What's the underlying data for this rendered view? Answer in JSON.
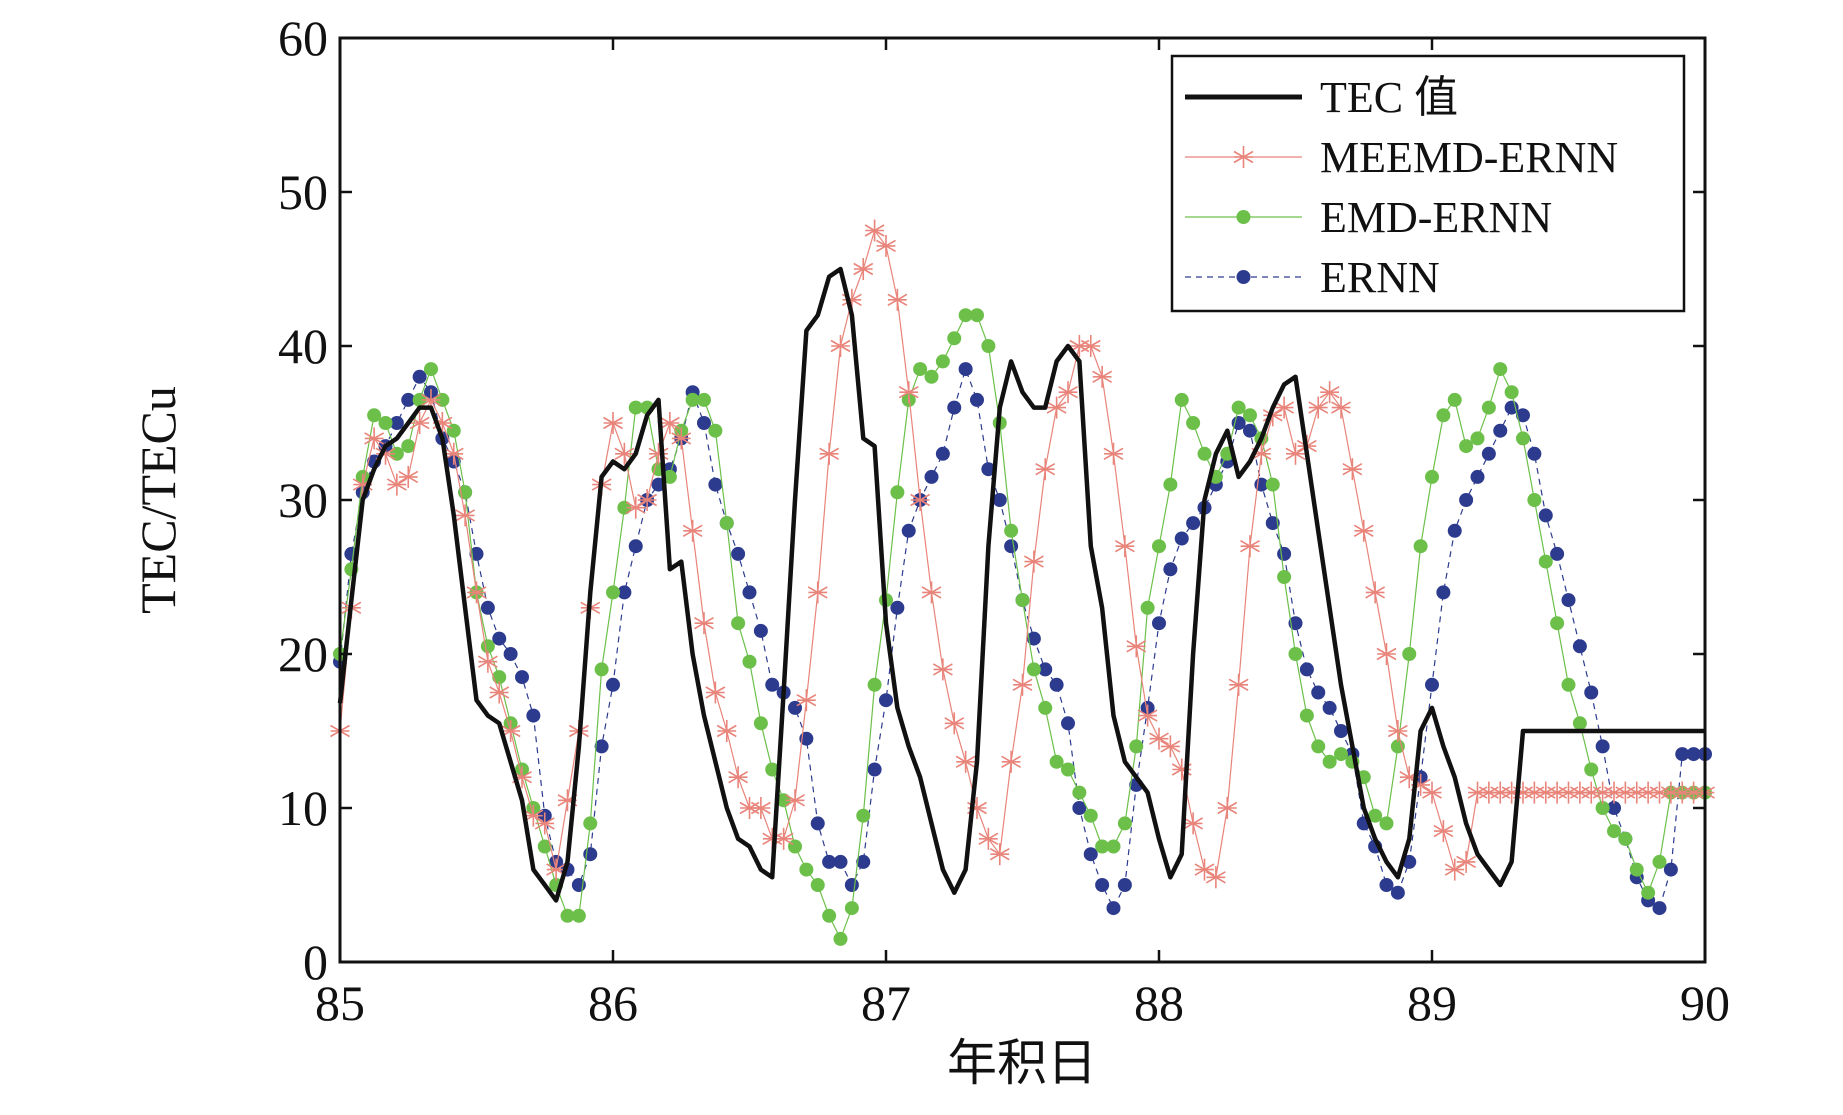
{
  "chart_data": {
    "type": "line",
    "title": "",
    "xlabel": "年积日",
    "ylabel": "TEC/TECu",
    "xlim": [
      85,
      90
    ],
    "ylim": [
      0,
      60
    ],
    "xticks": [
      "85",
      "86",
      "87",
      "88",
      "89",
      "90"
    ],
    "yticks": [
      "0",
      "10",
      "20",
      "30",
      "40",
      "50",
      "60"
    ],
    "grid": false,
    "legend_position": "top-right",
    "x": [
      85.0,
      85.0417,
      85.0833,
      85.125,
      85.1667,
      85.2083,
      85.25,
      85.2917,
      85.3333,
      85.375,
      85.4167,
      85.4583,
      85.5,
      85.5417,
      85.5833,
      85.625,
      85.6667,
      85.7083,
      85.75,
      85.7917,
      85.8333,
      85.875,
      85.9167,
      85.9583,
      86.0,
      86.0417,
      86.0833,
      86.125,
      86.1667,
      86.2083,
      86.25,
      86.2917,
      86.3333,
      86.375,
      86.4167,
      86.4583,
      86.5,
      86.5417,
      86.5833,
      86.625,
      86.6667,
      86.7083,
      86.75,
      86.7917,
      86.8333,
      86.875,
      86.9167,
      86.9583,
      87.0,
      87.0417,
      87.0833,
      87.125,
      87.1667,
      87.2083,
      87.25,
      87.2917,
      87.3333,
      87.375,
      87.4167,
      87.4583,
      87.5,
      87.5417,
      87.5833,
      87.625,
      87.6667,
      87.7083,
      87.75,
      87.7917,
      87.8333,
      87.875,
      87.9167,
      87.9583,
      88.0,
      88.0417,
      88.0833,
      88.125,
      88.1667,
      88.2083,
      88.25,
      88.2917,
      88.3333,
      88.375,
      88.4167,
      88.4583,
      88.5,
      88.5417,
      88.5833,
      88.625,
      88.6667,
      88.7083,
      88.75,
      88.7917,
      88.8333,
      88.875,
      88.9167,
      88.9583,
      89.0,
      89.0417,
      89.0833,
      89.125,
      89.1667,
      89.2083,
      89.25,
      89.2917,
      89.3333,
      89.375,
      89.4167,
      89.4583,
      89.5,
      89.5417,
      89.5833,
      89.625,
      89.6667,
      89.7083,
      89.75,
      89.7917,
      89.8333,
      89.875,
      89.9167,
      89.9583,
      90.0
    ],
    "series": [
      {
        "name": "TEC 值",
        "color": "#111111",
        "style": "solid-thick",
        "values": [
          16.8,
          23.5,
          30.0,
          32.0,
          33.5,
          34.0,
          35.0,
          36.0,
          36.0,
          34.0,
          29.0,
          23.0,
          17.0,
          16.0,
          15.5,
          13.0,
          10.5,
          6.0,
          5.0,
          4.0,
          6.5,
          14.0,
          24.0,
          31.5,
          32.5,
          32.0,
          33.0,
          35.5,
          36.5,
          25.5,
          26.0,
          20.0,
          16.0,
          13.0,
          10.0,
          8.0,
          7.5,
          6.0,
          5.5,
          17.5,
          30.0,
          41.0,
          42.0,
          44.5,
          45.0,
          42.0,
          34.0,
          33.5,
          22.0,
          16.5,
          14.0,
          12.0,
          9.0,
          6.0,
          4.5,
          6.0,
          13.0,
          27.0,
          36.0,
          39.0,
          37.0,
          36.0,
          36.0,
          39.0,
          40.0,
          39.0,
          27.0,
          23.0,
          16.0,
          13.0,
          12.0,
          11.0,
          8.0,
          5.5,
          7.0,
          20.0,
          30.0,
          33.0,
          34.5,
          31.5,
          32.5,
          34.0,
          36.0,
          37.5,
          38.0,
          33.0,
          28.0,
          23.0,
          18.0,
          14.0,
          10.0,
          8.0,
          6.5,
          5.5,
          8.0,
          15.0,
          16.5,
          14.0,
          12.0,
          9.0,
          7.0,
          6.0,
          5.0,
          6.5,
          15.0,
          15.0,
          15.0,
          15.0,
          15.0,
          15.0,
          15.0,
          15.0,
          15.0,
          15.0,
          15.0,
          15.0,
          15.0,
          15.0,
          15.0,
          15.0,
          15.0
        ]
      },
      {
        "name": "MEEMD-ERNN",
        "color": "#e8847a",
        "style": "thin-star",
        "values": [
          15.0,
          23.0,
          31.0,
          34.0,
          33.0,
          31.0,
          31.5,
          35.0,
          36.5,
          35.0,
          33.0,
          29.0,
          24.0,
          19.5,
          17.5,
          15.0,
          12.0,
          9.5,
          9.0,
          6.0,
          10.5,
          15.0,
          23.0,
          31.0,
          35.0,
          33.0,
          29.5,
          30.0,
          33.0,
          35.0,
          34.0,
          28.0,
          22.0,
          17.5,
          15.0,
          12.0,
          10.0,
          10.0,
          8.0,
          8.0,
          10.5,
          17.0,
          24.0,
          33.0,
          40.0,
          43.0,
          45.0,
          47.5,
          46.5,
          43.0,
          37.0,
          30.0,
          24.0,
          19.0,
          15.5,
          13.0,
          10.0,
          8.0,
          7.0,
          13.0,
          18.0,
          26.0,
          32.0,
          36.0,
          37.0,
          40.0,
          40.0,
          38.0,
          33.0,
          27.0,
          20.5,
          16.0,
          14.5,
          14.0,
          12.5,
          9.0,
          6.0,
          5.5,
          10.0,
          18.0,
          27.0,
          33.0,
          35.5,
          36.0,
          33.0,
          33.5,
          36.0,
          37.0,
          36.0,
          32.0,
          28.0,
          24.0,
          20.0,
          15.0,
          12.0,
          11.5,
          11.0,
          8.5,
          6.0,
          6.5,
          11.0,
          11.0,
          11.0,
          11.0,
          11.0,
          11.0,
          11.0,
          11.0,
          11.0,
          11.0,
          11.0,
          11.0,
          11.0,
          11.0,
          11.0,
          11.0,
          11.0,
          11.0,
          11.0,
          11.0,
          11.0
        ]
      },
      {
        "name": "EMD-ERNN",
        "color": "#6cc04a",
        "style": "thin-dot",
        "values": [
          20.0,
          25.5,
          31.5,
          35.5,
          35.0,
          33.0,
          33.5,
          36.5,
          38.5,
          36.5,
          34.5,
          30.5,
          24.0,
          20.5,
          18.5,
          15.5,
          12.5,
          10.0,
          7.5,
          5.0,
          3.0,
          3.0,
          9.0,
          19.0,
          24.0,
          29.5,
          36.0,
          36.0,
          32.0,
          31.5,
          34.5,
          36.5,
          36.5,
          34.5,
          28.5,
          22.0,
          19.5,
          15.5,
          12.5,
          10.5,
          7.5,
          6.0,
          5.0,
          3.0,
          1.5,
          3.5,
          9.5,
          18.0,
          23.5,
          30.5,
          36.5,
          38.5,
          38.0,
          39.0,
          40.5,
          42.0,
          42.0,
          40.0,
          35.0,
          28.0,
          23.5,
          19.0,
          16.5,
          13.0,
          12.5,
          11.0,
          9.5,
          7.5,
          7.5,
          9.0,
          14.0,
          23.0,
          27.0,
          31.0,
          36.5,
          35.0,
          33.0,
          31.5,
          33.0,
          36.0,
          35.5,
          34.0,
          31.0,
          25.0,
          20.0,
          16.0,
          14.0,
          13.0,
          13.5,
          13.0,
          12.0,
          9.5,
          9.0,
          14.0,
          20.0,
          27.0,
          31.5,
          35.5,
          36.5,
          33.5,
          34.0,
          36.0,
          38.5,
          37.0,
          34.0,
          30.0,
          26.0,
          22.0,
          18.0,
          15.5,
          12.5,
          10.0,
          8.5,
          8.0,
          6.0,
          4.5,
          6.5,
          11.0,
          11.0,
          11.0,
          11.0
        ]
      },
      {
        "name": "ERNN",
        "color": "#2d3b8f",
        "style": "thin-dashed-dot",
        "values": [
          19.5,
          26.5,
          30.5,
          32.5,
          33.5,
          35.0,
          36.5,
          38.0,
          37.0,
          34.0,
          32.5,
          30.5,
          26.5,
          23.0,
          21.0,
          20.0,
          18.5,
          16.0,
          9.5,
          6.5,
          6.0,
          5.0,
          7.0,
          14.0,
          18.0,
          24.0,
          27.0,
          30.0,
          31.0,
          32.0,
          34.0,
          37.0,
          35.0,
          31.0,
          28.5,
          26.5,
          24.0,
          21.5,
          18.0,
          17.5,
          16.5,
          14.5,
          9.0,
          6.5,
          6.5,
          5.0,
          6.5,
          12.5,
          17.0,
          23.0,
          28.0,
          30.0,
          31.5,
          33.0,
          36.0,
          38.5,
          36.5,
          32.0,
          30.0,
          27.0,
          23.5,
          21.0,
          19.0,
          18.0,
          15.5,
          10.0,
          7.0,
          5.0,
          3.5,
          5.0,
          11.5,
          16.5,
          22.0,
          25.5,
          27.5,
          28.5,
          29.5,
          31.0,
          32.5,
          35.0,
          34.5,
          31.0,
          28.5,
          26.5,
          22.0,
          19.0,
          17.5,
          16.5,
          15.0,
          13.5,
          9.0,
          7.5,
          5.0,
          4.5,
          6.5,
          12.0,
          18.0,
          24.0,
          28.0,
          30.0,
          31.5,
          33.0,
          34.5,
          36.0,
          35.5,
          33.0,
          29.0,
          26.5,
          23.5,
          20.5,
          17.5,
          14.0,
          10.0,
          8.0,
          5.5,
          4.0,
          3.5,
          6.0,
          13.5,
          13.5,
          13.5
        ]
      }
    ]
  }
}
